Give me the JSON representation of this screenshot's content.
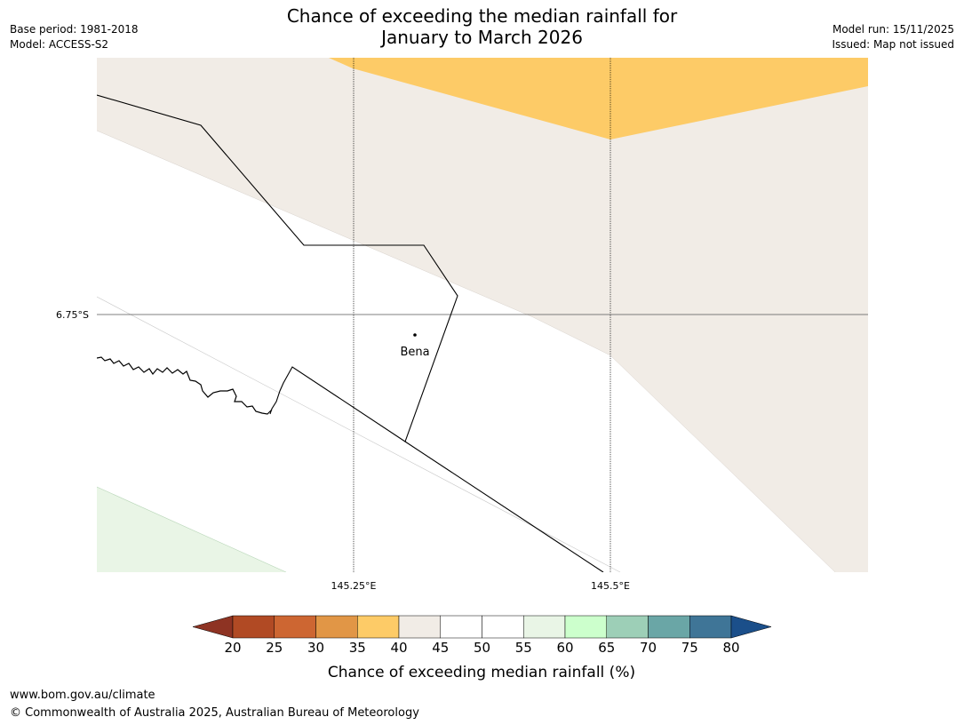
{
  "header": {
    "title_line1": "Chance of exceeding the median rainfall for",
    "title_line2": "January to March 2026",
    "base_period": "Base period: 1981-2018",
    "model": "Model: ACCESS-S2",
    "model_run": "Model run: 15/11/2025",
    "issued": "Issued: Map not issued"
  },
  "map": {
    "lat_label": "6.75°S",
    "lon_labels": [
      "145.25°E",
      "145.5°E"
    ],
    "place_name": "Bena",
    "band_colors": {
      "35-40": "#fdcb67",
      "40-45": "#f1ece6",
      "45-55": "#ffffff",
      "55-60": "#e9f5e6"
    }
  },
  "legend": {
    "title": "Chance of exceeding median rainfall (%)",
    "ticks": [
      "20",
      "25",
      "30",
      "35",
      "40",
      "45",
      "50",
      "55",
      "60",
      "65",
      "70",
      "75",
      "80"
    ],
    "colors": [
      "#8e3323",
      "#b14a24",
      "#cd6632",
      "#e19646",
      "#fdcb67",
      "#f1ece6",
      "#ffffff",
      "#ffffff",
      "#e9f5e6",
      "#ccffcc",
      "#9dcfb7",
      "#6aa6a6",
      "#3f7597",
      "#1b4f8a"
    ]
  },
  "footer": {
    "url": "www.bom.gov.au/climate",
    "copyright": "© Commonwealth of Australia 2025, Australian Bureau of Meteorology"
  }
}
